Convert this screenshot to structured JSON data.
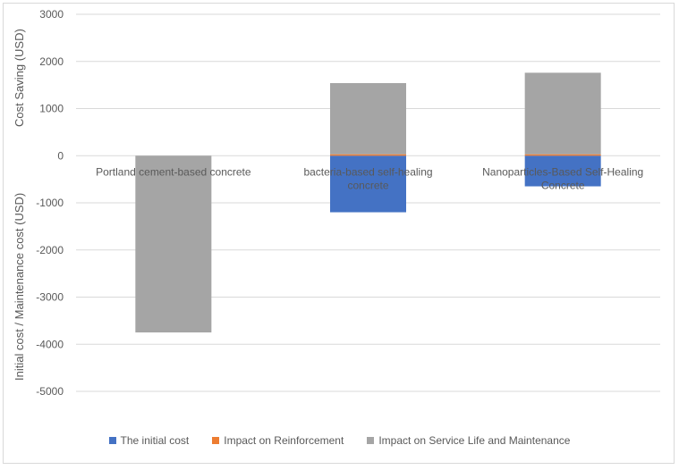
{
  "chart_data": {
    "type": "bar",
    "stacked": true,
    "categories": [
      "Portland cement-based concrete",
      "bacteria-based self-healing concrete",
      "Nanoparticles-Based Self-Healing Concrete"
    ],
    "series": [
      {
        "name": "The initial cost",
        "color": "#4472c4",
        "values": [
          0,
          -1200,
          -650
        ]
      },
      {
        "name": "Impact on Reinforcement",
        "color": "#ed7d31",
        "values": [
          0,
          30,
          30
        ]
      },
      {
        "name": "Impact on Service Life and Maintenance",
        "color": "#a5a5a5",
        "values": [
          -3750,
          1510,
          1730
        ]
      }
    ],
    "ylim": [
      -5000,
      3000
    ],
    "yticks": [
      "3000",
      "2000",
      "1000",
      "0",
      "-1000",
      "-2000",
      "-3000",
      "-4000",
      "-5000"
    ],
    "ylabel_top": "Cost Saving (USD)",
    "ylabel_bottom": "Initial cost / Maintenance cost (USD)",
    "legend_position": "bottom",
    "grid": true
  }
}
